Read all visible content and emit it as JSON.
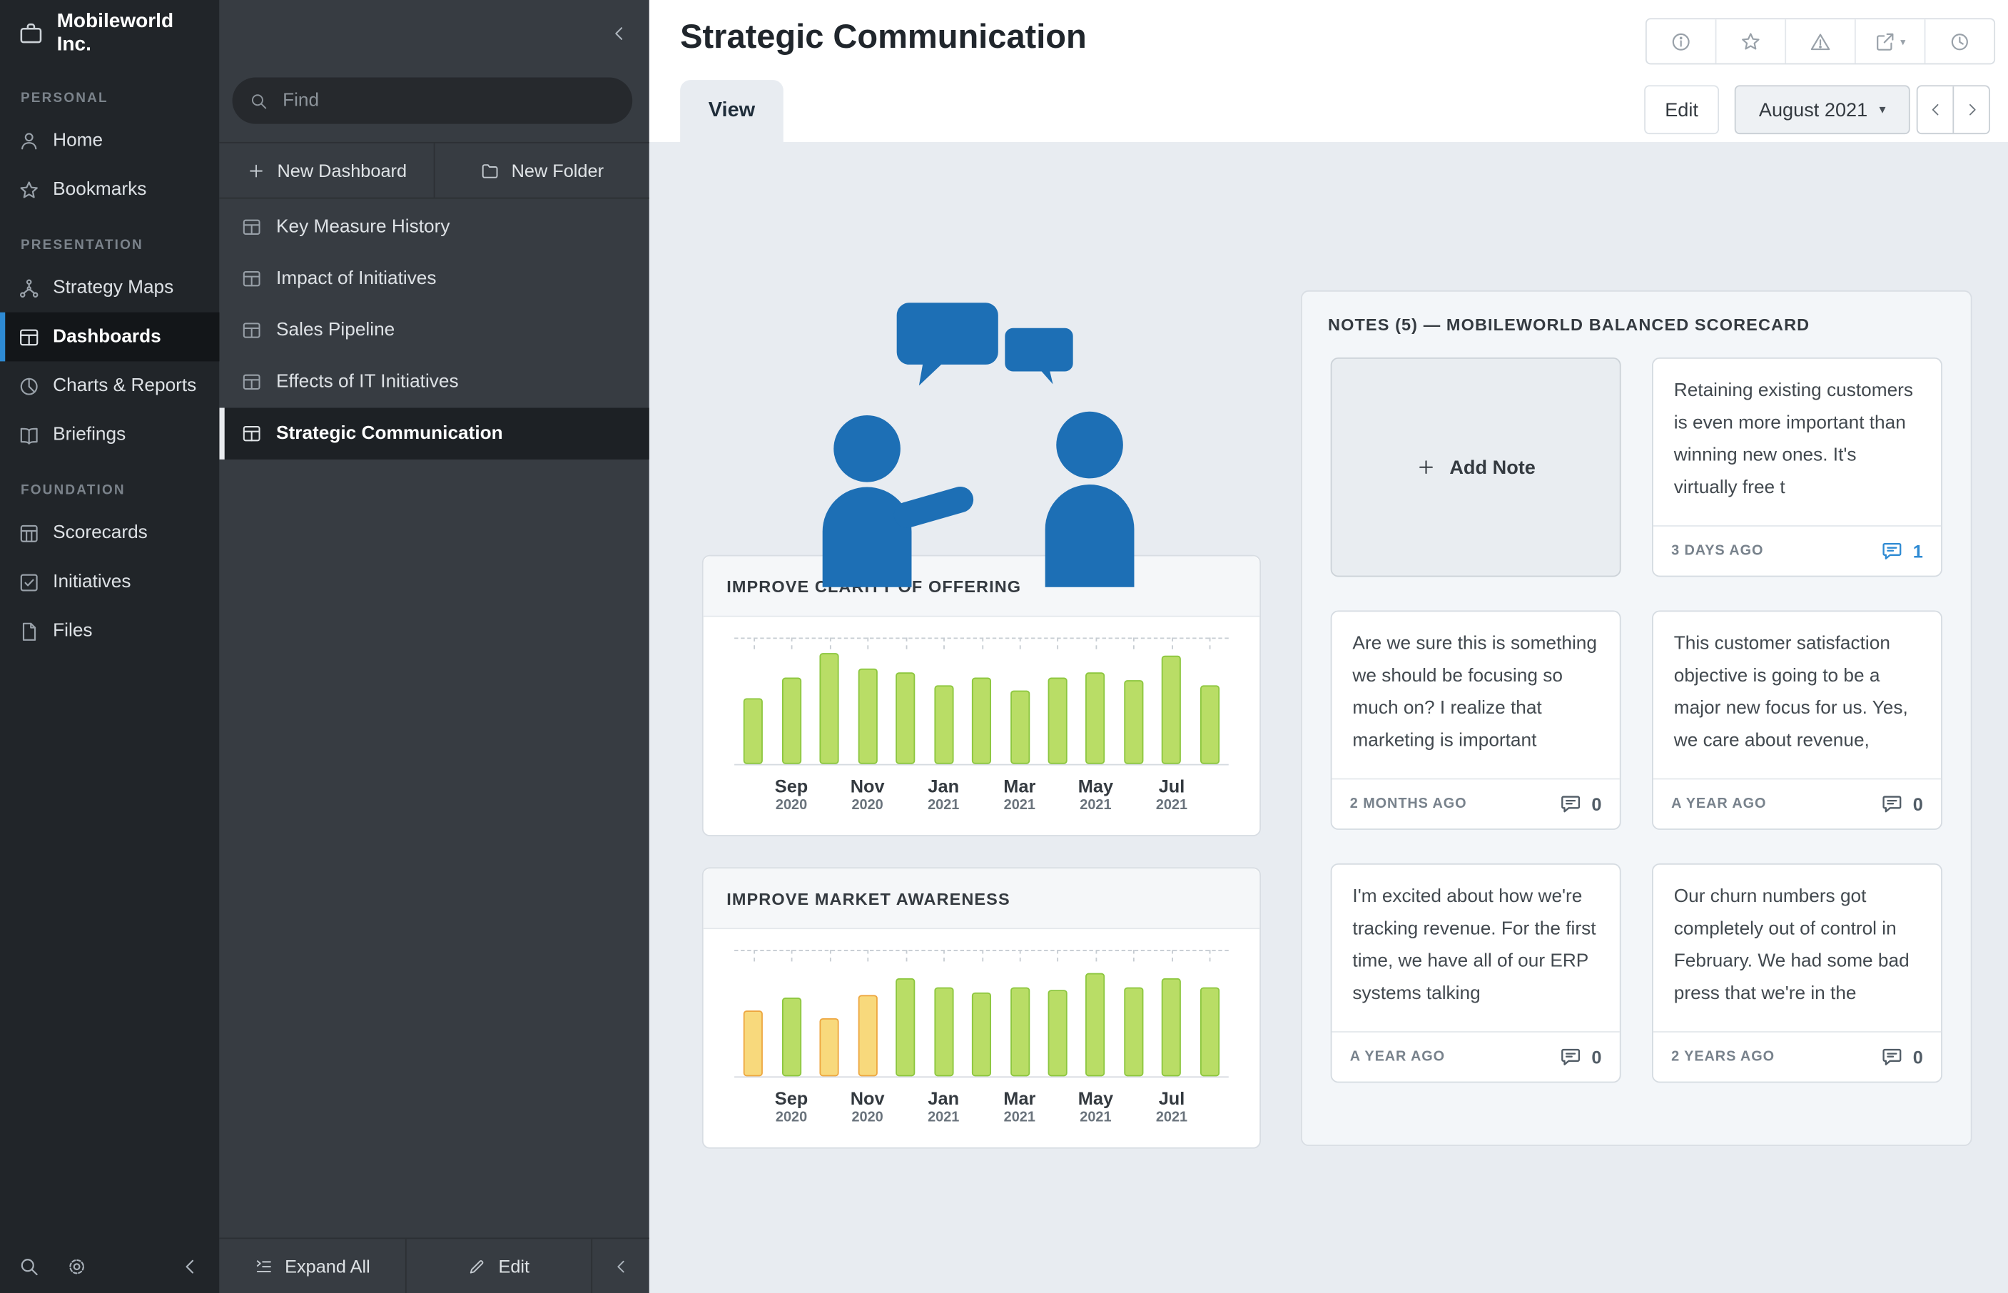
{
  "company": {
    "name": "Mobileworld Inc."
  },
  "sidebar": {
    "sections": [
      {
        "label": "PERSONAL",
        "items": [
          {
            "label": "Home"
          },
          {
            "label": "Bookmarks"
          }
        ]
      },
      {
        "label": "PRESENTATION",
        "items": [
          {
            "label": "Strategy Maps"
          },
          {
            "label": "Dashboards"
          },
          {
            "label": "Charts & Reports"
          },
          {
            "label": "Briefings"
          }
        ]
      },
      {
        "label": "FOUNDATION",
        "items": [
          {
            "label": "Scorecards"
          },
          {
            "label": "Initiatives"
          },
          {
            "label": "Files"
          }
        ]
      }
    ]
  },
  "explorer": {
    "find_placeholder": "Find",
    "new_dashboard_label": "New Dashboard",
    "new_folder_label": "New Folder",
    "items": [
      {
        "label": "Key Measure History"
      },
      {
        "label": "Impact of Initiatives"
      },
      {
        "label": "Sales Pipeline"
      },
      {
        "label": "Effects of IT Initiatives"
      },
      {
        "label": "Strategic Communication"
      }
    ],
    "expand_all_label": "Expand All",
    "edit_label": "Edit"
  },
  "header": {
    "title": "Strategic Communication",
    "active_tab": "View",
    "edit_label": "Edit",
    "period_label": "August 2021"
  },
  "icons": {
    "toolbar": [
      "info-icon",
      "star-icon",
      "warning-icon",
      "export-icon",
      "history-icon"
    ],
    "sidebar": [
      "briefcase-icon",
      "person-icon",
      "star-icon",
      "strategy-map-icon",
      "dashboard-icon",
      "pie-chart-icon",
      "book-icon",
      "scorecard-icon",
      "check-square-icon",
      "file-icon",
      "search-icon",
      "gear-icon"
    ]
  },
  "palette": {
    "green_fill": "#b9dd66",
    "green_stroke": "#8cc63e",
    "yellow_fill": "#f8d97c",
    "yellow_stroke": "#eda63f",
    "accent_blue": "#2e8ad3",
    "figure_blue": "#1d6fb5"
  },
  "chart_data": [
    {
      "type": "bar",
      "title": "IMPROVE CLARITY OF OFFERING",
      "ymax": 100,
      "x": [
        "Aug 2020",
        "Sep 2020",
        "Oct 2020",
        "Nov 2020",
        "Dec 2020",
        "Jan 2021",
        "Feb 2021",
        "Mar 2021",
        "Apr 2021",
        "May 2021",
        "Jun 2021",
        "Jul 2021",
        "Aug 2021"
      ],
      "values": [
        52,
        68,
        88,
        76,
        72,
        62,
        68,
        58,
        68,
        72,
        66,
        86,
        62
      ],
      "colors": [
        "green",
        "green",
        "green",
        "green",
        "green",
        "green",
        "green",
        "green",
        "green",
        "green",
        "green",
        "green",
        "green"
      ],
      "x_labels": [
        {
          "month": "Sep",
          "year": "2020",
          "slot": 1
        },
        {
          "month": "Nov",
          "year": "2020",
          "slot": 3
        },
        {
          "month": "Jan",
          "year": "2021",
          "slot": 5
        },
        {
          "month": "Mar",
          "year": "2021",
          "slot": 7
        },
        {
          "month": "May",
          "year": "2021",
          "slot": 9
        },
        {
          "month": "Jul",
          "year": "2021",
          "slot": 11
        }
      ]
    },
    {
      "type": "bar",
      "title": "IMPROVE MARKET AWARENESS",
      "ymax": 100,
      "x": [
        "Aug 2020",
        "Sep 2020",
        "Oct 2020",
        "Nov 2020",
        "Dec 2020",
        "Jan 2021",
        "Feb 2021",
        "Mar 2021",
        "Apr 2021",
        "May 2021",
        "Jun 2021",
        "Jul 2021",
        "Aug 2021"
      ],
      "values": [
        52,
        62,
        46,
        64,
        78,
        70,
        66,
        70,
        68,
        82,
        70,
        78,
        70
      ],
      "colors": [
        "yellow",
        "green",
        "yellow",
        "yellow",
        "green",
        "green",
        "green",
        "green",
        "green",
        "green",
        "green",
        "green",
        "green"
      ],
      "x_labels": [
        {
          "month": "Sep",
          "year": "2020",
          "slot": 1
        },
        {
          "month": "Nov",
          "year": "2020",
          "slot": 3
        },
        {
          "month": "Jan",
          "year": "2021",
          "slot": 5
        },
        {
          "month": "Mar",
          "year": "2021",
          "slot": 7
        },
        {
          "month": "May",
          "year": "2021",
          "slot": 9
        },
        {
          "month": "Jul",
          "year": "2021",
          "slot": 11
        }
      ]
    }
  ],
  "notes": {
    "title": "NOTES (5) — MOBILEWORLD BALANCED SCORECARD",
    "add_label": "Add Note",
    "cards": [
      {
        "text": "Retaining existing customers is even more important than winning new ones. It's virtually free t",
        "time": "3 DAYS AGO",
        "count": "1"
      },
      {
        "text": "Are we sure this is something we should be focusing so much on? I realize that marketing is important",
        "time": "2 MONTHS AGO",
        "count": "0"
      },
      {
        "text": "This customer satisfaction objective is going to be a major new focus for us. Yes, we care about revenue,",
        "time": "A YEAR AGO",
        "count": "0"
      },
      {
        "text": "I'm excited about how we're tracking revenue. For the first time, we have all of our ERP systems talking",
        "time": "A YEAR AGO",
        "count": "0"
      },
      {
        "text": "Our churn numbers got completely out of control in February. We had some bad press that we're in the",
        "time": "2 YEARS AGO",
        "count": "0"
      }
    ]
  }
}
